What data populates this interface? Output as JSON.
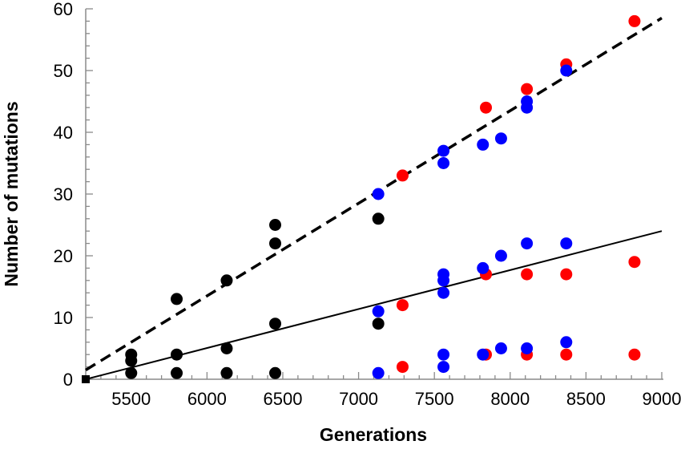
{
  "chart_data": {
    "type": "scatter",
    "title": "",
    "xlabel": "Generations",
    "ylabel": "Number of mutations",
    "xlim": [
      5200,
      9000
    ],
    "ylim": [
      0,
      60
    ],
    "x_ticks": [
      5500,
      6000,
      6500,
      7000,
      7500,
      8000,
      8500,
      9000
    ],
    "x_tick_labels": [
      "5500",
      "6000",
      "6500",
      "7000",
      "7500",
      "8000",
      "8500",
      "9000"
    ],
    "y_ticks": [
      0,
      10,
      20,
      30,
      40,
      50,
      60
    ],
    "y_tick_labels": [
      "0",
      "10",
      "20",
      "30",
      "40",
      "50",
      "60"
    ],
    "x_minor_step": 100,
    "y_minor_step": 2,
    "grid": false,
    "legend": "none",
    "series": [
      {
        "name": "black",
        "color": "#000000",
        "points": [
          [
            5200,
            0
          ],
          [
            5500,
            4
          ],
          [
            5500,
            3
          ],
          [
            5500,
            1
          ],
          [
            5800,
            13
          ],
          [
            5800,
            4
          ],
          [
            5800,
            1
          ],
          [
            6130,
            16
          ],
          [
            6130,
            5
          ],
          [
            6130,
            1
          ],
          [
            6450,
            25
          ],
          [
            6450,
            22
          ],
          [
            6450,
            9
          ],
          [
            6450,
            1
          ],
          [
            7130,
            26
          ],
          [
            7130,
            9
          ]
        ]
      },
      {
        "name": "red",
        "color": "#ff0000",
        "points": [
          [
            7290,
            33
          ],
          [
            7290,
            12
          ],
          [
            7290,
            2
          ],
          [
            7840,
            44
          ],
          [
            7840,
            17
          ],
          [
            7840,
            4
          ],
          [
            8110,
            47
          ],
          [
            8110,
            17
          ],
          [
            8110,
            4
          ],
          [
            8370,
            51
          ],
          [
            8370,
            17
          ],
          [
            8370,
            4
          ],
          [
            8820,
            58
          ],
          [
            8820,
            19
          ],
          [
            8820,
            4
          ]
        ]
      },
      {
        "name": "blue",
        "color": "#0000ff",
        "points": [
          [
            7130,
            30
          ],
          [
            7130,
            11
          ],
          [
            7130,
            1
          ],
          [
            7560,
            37
          ],
          [
            7560,
            35
          ],
          [
            7560,
            17
          ],
          [
            7560,
            16
          ],
          [
            7560,
            14
          ],
          [
            7560,
            4
          ],
          [
            7560,
            2
          ],
          [
            7820,
            38
          ],
          [
            7820,
            18
          ],
          [
            7820,
            4
          ],
          [
            7940,
            39
          ],
          [
            7940,
            20
          ],
          [
            7940,
            5
          ],
          [
            8110,
            45
          ],
          [
            8110,
            44
          ],
          [
            8110,
            22
          ],
          [
            8110,
            5
          ],
          [
            8370,
            50
          ],
          [
            8370,
            22
          ],
          [
            8370,
            6
          ]
        ]
      }
    ],
    "lines": [
      {
        "name": "dashed-fit",
        "style": "dashed",
        "color": "#000000",
        "from": [
          5200,
          1.5
        ],
        "to": [
          9000,
          58.5
        ]
      },
      {
        "name": "solid-fit",
        "style": "solid",
        "color": "#000000",
        "from": [
          5200,
          0
        ],
        "to": [
          9000,
          24
        ]
      }
    ]
  }
}
